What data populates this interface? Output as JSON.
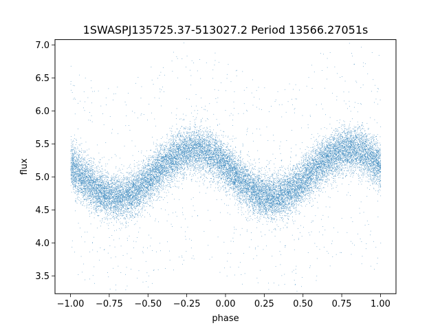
{
  "chart_data": {
    "type": "scatter",
    "title": "1SWASPJ135725.37-513027.2 Period 13566.27051s",
    "xlabel": "phase",
    "ylabel": "flux",
    "xlim": [
      -1.1,
      1.1
    ],
    "ylim": [
      3.23,
      7.08
    ],
    "x_ticks": [
      -1.0,
      -0.75,
      -0.5,
      -0.25,
      0.0,
      0.25,
      0.5,
      0.75,
      1.0
    ],
    "x_tick_labels": [
      "−1.00",
      "−0.75",
      "−0.50",
      "−0.25",
      "0.00",
      "0.25",
      "0.50",
      "0.75",
      "1.00"
    ],
    "y_ticks": [
      3.5,
      4.0,
      4.5,
      5.0,
      5.5,
      6.0,
      6.5,
      7.0
    ],
    "y_tick_labels": [
      "3.5",
      "4.0",
      "4.5",
      "5.0",
      "5.5",
      "6.0",
      "6.5",
      "7.0"
    ],
    "point_color": "#1f77b4",
    "grid": false,
    "series": [
      {
        "phase_range": [
          -1.0,
          1.0
        ],
        "model": "sinusoid",
        "mean_flux": 5.05,
        "amplitude": 0.36,
        "maximum_phases": [
          -0.2,
          0.8
        ],
        "minimum_phases": [
          -0.7,
          0.3
        ],
        "scatter_sigma": 0.17,
        "n_points": 22000
      }
    ]
  }
}
